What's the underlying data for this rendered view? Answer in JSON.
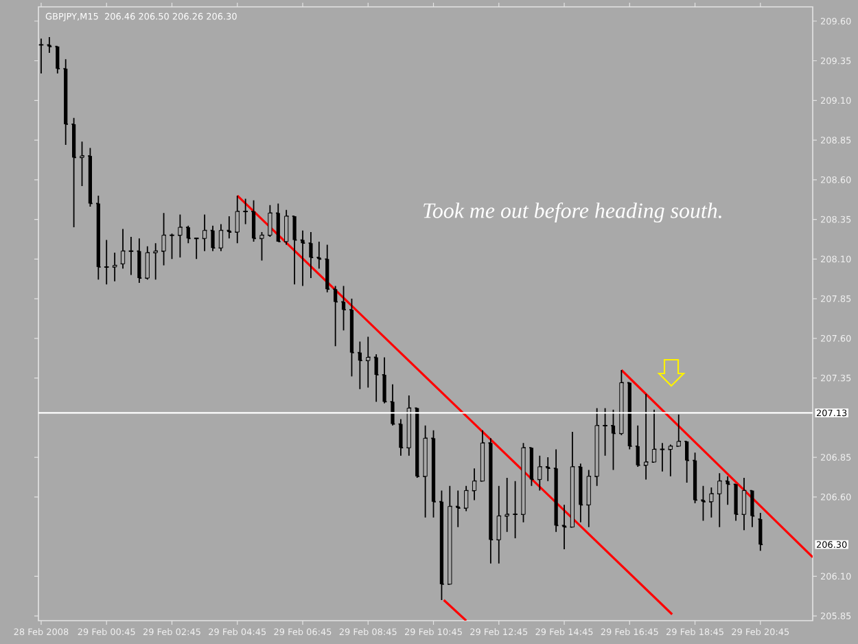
{
  "chart_data": {
    "type": "candlestick",
    "title": "GBPJPY,M15",
    "subtitle": "206.46 206.50 206.26 206.30",
    "color": "#000000",
    "x": [
      "2008-02-28T22:45",
      "2008-02-28T23:00",
      "2008-02-28T23:15",
      "2008-02-28T23:30",
      "2008-02-28T23:45",
      "2008-02-29T00:00",
      "2008-02-29T00:15",
      "2008-02-29T00:30",
      "2008-02-29T00:45",
      "2008-02-29T01:00",
      "2008-02-29T01:15",
      "2008-02-29T01:30",
      "2008-02-29T01:45",
      "2008-02-29T02:00",
      "2008-02-29T02:15",
      "2008-02-29T02:30",
      "2008-02-29T02:45",
      "2008-02-29T03:00",
      "2008-02-29T03:15",
      "2008-02-29T03:30",
      "2008-02-29T03:45",
      "2008-02-29T04:00",
      "2008-02-29T04:15",
      "2008-02-29T04:30",
      "2008-02-29T04:45",
      "2008-02-29T05:00",
      "2008-02-29T05:15",
      "2008-02-29T05:30",
      "2008-02-29T05:45",
      "2008-02-29T06:00",
      "2008-02-29T06:15",
      "2008-02-29T06:30",
      "2008-02-29T06:45",
      "2008-02-29T07:00",
      "2008-02-29T07:15",
      "2008-02-29T07:30",
      "2008-02-29T07:45",
      "2008-02-29T08:00",
      "2008-02-29T08:15",
      "2008-02-29T08:30",
      "2008-02-29T08:45",
      "2008-02-29T09:00",
      "2008-02-29T09:15",
      "2008-02-29T09:30",
      "2008-02-29T09:45",
      "2008-02-29T10:00",
      "2008-02-29T10:15",
      "2008-02-29T10:30",
      "2008-02-29T10:45",
      "2008-02-29T11:00",
      "2008-02-29T11:15",
      "2008-02-29T11:30",
      "2008-02-29T11:45",
      "2008-02-29T12:00",
      "2008-02-29T12:15",
      "2008-02-29T12:30",
      "2008-02-29T12:45",
      "2008-02-29T13:00",
      "2008-02-29T13:15",
      "2008-02-29T13:30",
      "2008-02-29T13:45",
      "2008-02-29T14:00",
      "2008-02-29T14:15",
      "2008-02-29T14:30",
      "2008-02-29T14:45",
      "2008-02-29T15:00",
      "2008-02-29T15:15",
      "2008-02-29T15:30",
      "2008-02-29T15:45",
      "2008-02-29T16:00",
      "2008-02-29T16:15",
      "2008-02-29T16:30",
      "2008-02-29T16:45",
      "2008-02-29T17:00",
      "2008-02-29T17:15",
      "2008-02-29T17:30",
      "2008-02-29T17:45",
      "2008-02-29T18:00",
      "2008-02-29T18:15",
      "2008-02-29T18:30",
      "2008-02-29T18:45",
      "2008-02-29T19:00",
      "2008-02-29T19:15",
      "2008-02-29T19:30",
      "2008-02-29T19:45",
      "2008-02-29T20:00",
      "2008-02-29T20:15",
      "2008-02-29T20:30",
      "2008-02-29T20:45"
    ],
    "ohlc": [
      [
        209.45,
        209.49,
        209.27,
        209.45
      ],
      [
        209.45,
        209.5,
        209.4,
        209.44
      ],
      [
        209.44,
        209.44,
        209.27,
        209.3
      ],
      [
        209.3,
        209.36,
        208.82,
        208.95
      ],
      [
        208.95,
        208.99,
        208.3,
        208.74
      ],
      [
        208.74,
        208.84,
        208.56,
        208.75
      ],
      [
        208.75,
        208.8,
        208.43,
        208.45
      ],
      [
        208.45,
        208.5,
        207.97,
        208.05
      ],
      [
        208.05,
        208.22,
        207.94,
        208.05
      ],
      [
        208.05,
        208.14,
        207.96,
        208.06
      ],
      [
        208.07,
        208.29,
        208.04,
        208.15
      ],
      [
        208.15,
        208.24,
        208.0,
        208.15
      ],
      [
        208.15,
        208.23,
        207.95,
        207.98
      ],
      [
        207.98,
        208.18,
        207.97,
        208.14
      ],
      [
        208.14,
        208.2,
        207.97,
        208.15
      ],
      [
        208.15,
        208.39,
        208.06,
        208.25
      ],
      [
        208.25,
        208.26,
        208.1,
        208.25
      ],
      [
        208.25,
        208.38,
        208.11,
        208.3
      ],
      [
        208.3,
        208.31,
        208.2,
        208.23
      ],
      [
        208.23,
        208.23,
        208.1,
        208.23
      ],
      [
        208.23,
        208.38,
        208.15,
        208.28
      ],
      [
        208.28,
        208.31,
        208.15,
        208.17
      ],
      [
        208.17,
        208.32,
        208.15,
        208.28
      ],
      [
        208.28,
        208.37,
        208.23,
        208.27
      ],
      [
        208.27,
        208.5,
        208.2,
        208.4
      ],
      [
        208.4,
        208.48,
        208.32,
        208.4
      ],
      [
        208.4,
        208.47,
        208.21,
        208.23
      ],
      [
        208.23,
        208.27,
        208.09,
        208.25
      ],
      [
        208.25,
        208.44,
        208.24,
        208.39
      ],
      [
        208.39,
        208.45,
        208.21,
        208.21
      ],
      [
        208.21,
        208.41,
        208.19,
        208.37
      ],
      [
        208.37,
        208.37,
        207.94,
        208.22
      ],
      [
        208.22,
        208.28,
        207.93,
        208.2
      ],
      [
        208.2,
        208.27,
        207.98,
        208.11
      ],
      [
        208.11,
        208.21,
        208.04,
        208.1
      ],
      [
        208.1,
        208.19,
        207.89,
        207.91
      ],
      [
        207.91,
        207.93,
        207.55,
        207.83
      ],
      [
        207.83,
        207.93,
        207.65,
        207.78
      ],
      [
        207.78,
        207.85,
        207.36,
        207.51
      ],
      [
        207.51,
        207.58,
        207.28,
        207.46
      ],
      [
        207.46,
        207.61,
        207.29,
        207.48
      ],
      [
        207.48,
        207.5,
        207.2,
        207.37
      ],
      [
        207.37,
        207.48,
        207.19,
        207.2
      ],
      [
        207.2,
        207.31,
        207.05,
        207.06
      ],
      [
        207.06,
        207.09,
        206.86,
        206.91
      ],
      [
        206.91,
        207.24,
        206.86,
        207.16
      ],
      [
        207.16,
        207.16,
        206.72,
        206.73
      ],
      [
        206.73,
        207.05,
        206.47,
        206.97
      ],
      [
        206.97,
        207.02,
        206.47,
        206.57
      ],
      [
        206.57,
        206.64,
        205.95,
        206.05
      ],
      [
        206.05,
        206.67,
        206.05,
        206.54
      ],
      [
        206.54,
        206.64,
        206.41,
        206.53
      ],
      [
        206.53,
        206.67,
        206.51,
        206.64
      ],
      [
        206.64,
        206.78,
        206.58,
        206.7
      ],
      [
        206.7,
        207.02,
        206.7,
        206.94
      ],
      [
        206.94,
        206.97,
        206.18,
        206.33
      ],
      [
        206.33,
        206.67,
        206.18,
        206.48
      ],
      [
        206.48,
        206.72,
        206.38,
        206.49
      ],
      [
        206.49,
        206.7,
        206.34,
        206.49
      ],
      [
        206.49,
        206.94,
        206.44,
        206.91
      ],
      [
        206.91,
        206.91,
        206.67,
        206.71
      ],
      [
        206.71,
        206.86,
        206.64,
        206.79
      ],
      [
        206.79,
        206.85,
        206.7,
        206.78
      ],
      [
        206.78,
        206.9,
        206.38,
        206.42
      ],
      [
        206.42,
        206.55,
        206.27,
        206.41
      ],
      [
        206.41,
        207.01,
        206.41,
        206.79
      ],
      [
        206.79,
        206.81,
        206.44,
        206.55
      ],
      [
        206.55,
        206.77,
        206.41,
        206.73
      ],
      [
        206.73,
        207.16,
        206.67,
        207.05
      ],
      [
        207.05,
        207.16,
        206.86,
        207.05
      ],
      [
        207.05,
        207.15,
        206.77,
        207.0
      ],
      [
        207.0,
        207.4,
        206.99,
        207.32
      ],
      [
        207.32,
        207.32,
        206.9,
        206.92
      ],
      [
        206.92,
        207.05,
        206.79,
        206.8
      ],
      [
        206.8,
        207.25,
        206.71,
        206.82
      ],
      [
        206.82,
        207.15,
        206.82,
        206.9
      ],
      [
        206.9,
        206.94,
        206.76,
        206.9
      ],
      [
        206.9,
        206.93,
        206.73,
        206.92
      ],
      [
        206.92,
        207.12,
        206.92,
        206.95
      ],
      [
        206.95,
        206.95,
        206.69,
        206.83
      ],
      [
        206.83,
        206.88,
        206.56,
        206.58
      ],
      [
        206.58,
        206.67,
        206.45,
        206.57
      ],
      [
        206.57,
        206.66,
        206.47,
        206.62
      ],
      [
        206.62,
        206.75,
        206.41,
        206.7
      ],
      [
        206.7,
        206.73,
        206.55,
        206.68
      ],
      [
        206.68,
        206.68,
        206.45,
        206.49
      ],
      [
        206.49,
        206.72,
        206.39,
        206.64
      ],
      [
        206.64,
        206.64,
        206.41,
        206.48
      ],
      [
        206.46,
        206.5,
        206.26,
        206.3
      ]
    ],
    "series": [
      {
        "type": "line",
        "color": "#ff0000",
        "x": [
          "2008-02-29T04:45",
          "2008-02-29T18:03"
        ],
        "values": [
          208.5,
          205.86
        ]
      },
      {
        "type": "line",
        "color": "#ff0000",
        "x": [
          "2008-02-29T11:04",
          "2008-02-29T11:45"
        ],
        "values": [
          205.95,
          205.82
        ]
      },
      {
        "type": "line",
        "color": "#ff0000",
        "x": [
          "2008-02-29T16:30",
          "2008-02-29T22:21"
        ],
        "values": [
          207.4,
          206.22
        ]
      }
    ],
    "xlim": [
      "2008-02-28T22:40",
      "2008-02-29T22:21"
    ],
    "ylim": [
      205.82,
      209.69
    ],
    "xticks": [
      {
        "value": "2008-02-28T22:45",
        "label": "28 Feb 2008"
      },
      {
        "value": "2008-02-29T00:45",
        "label": "29 Feb 00:45"
      },
      {
        "value": "2008-02-29T02:45",
        "label": "29 Feb 02:45"
      },
      {
        "value": "2008-02-29T04:45",
        "label": "29 Feb 04:45"
      },
      {
        "value": "2008-02-29T06:45",
        "label": "29 Feb 06:45"
      },
      {
        "value": "2008-02-29T08:45",
        "label": "29 Feb 08:45"
      },
      {
        "value": "2008-02-29T10:45",
        "label": "29 Feb 10:45"
      },
      {
        "value": "2008-02-29T12:45",
        "label": "29 Feb 12:45"
      },
      {
        "value": "2008-02-29T14:45",
        "label": "29 Feb 14:45"
      },
      {
        "value": "2008-02-29T16:45",
        "label": "29 Feb 16:45"
      },
      {
        "value": "2008-02-29T18:45",
        "label": "29 Feb 18:45"
      },
      {
        "value": "2008-02-29T20:45",
        "label": "29 Feb 20:45"
      }
    ],
    "yticks": [
      205.85,
      {
        "value": 206.1,
        "label": "206.10"
      },
      {
        "value": 206.6,
        "label": "206.60"
      },
      206.85,
      207.35,
      {
        "value": 207.6,
        "label": "207.60"
      },
      207.85,
      {
        "value": 208.1,
        "label": "208.10"
      },
      208.35,
      {
        "value": 208.6,
        "label": "208.60"
      },
      208.85,
      {
        "value": 209.1,
        "label": "209.10"
      },
      209.35,
      {
        "value": 209.6,
        "label": "209.60"
      }
    ],
    "ref_lines": [
      {
        "axis": "y",
        "value": 207.13,
        "label": "207.13",
        "color": "#ffffff"
      }
    ],
    "annotations": [
      "Took me out before heading south.",
      "206.30"
    ]
  }
}
